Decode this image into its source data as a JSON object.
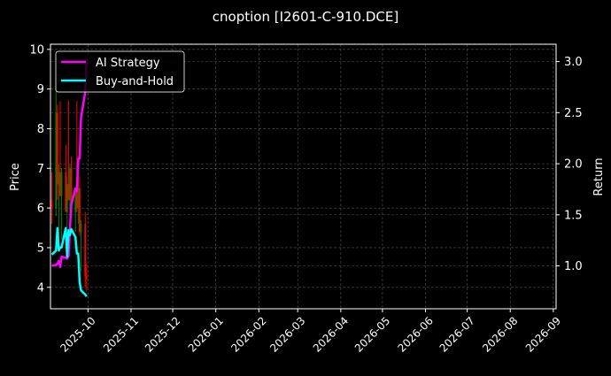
{
  "chart_data": {
    "type": "line",
    "title": "cnoption [I2601-C-910.DCE]",
    "xlabel": "",
    "ylabel": "Price",
    "y2label": "Return",
    "xlim": [
      "2025-09-04",
      "2026-09-03"
    ],
    "ylim": [
      3.46,
      10.13
    ],
    "y2lim": [
      0.58,
      3.17
    ],
    "x_ticks": [
      "2025-10",
      "2025-11",
      "2025-12",
      "2026-01",
      "2026-02",
      "2026-03",
      "2026-04",
      "2026-05",
      "2026-06",
      "2026-07",
      "2026-08",
      "2026-09"
    ],
    "y_ticks": [
      4,
      5,
      6,
      7,
      8,
      9,
      10
    ],
    "y2_ticks": [
      "1.0",
      "1.5",
      "2.0",
      "2.5",
      "3.0"
    ],
    "grid": true,
    "legend_placement": "top-left",
    "colors": {
      "up": "#008000",
      "down": "#ff0000",
      "strategy": "#ff00ff",
      "buyhold": "#00ffff",
      "background": "#000000",
      "grid": "#555555"
    },
    "dates": [
      "2025-09-05",
      "2025-09-08",
      "2025-09-09",
      "2025-09-10",
      "2025-09-11",
      "2025-09-12",
      "2025-09-15",
      "2025-09-16",
      "2025-09-17",
      "2025-09-18",
      "2025-09-19",
      "2025-09-22",
      "2025-09-23",
      "2025-09-24",
      "2025-09-25",
      "2025-09-26",
      "2025-09-29",
      "2025-09-30"
    ],
    "ohlc": [
      [
        6.2,
        6.9,
        5.6,
        6.0
      ],
      [
        6.0,
        9.2,
        5.8,
        8.4
      ],
      [
        8.4,
        8.6,
        6.2,
        6.6
      ],
      [
        6.6,
        7.1,
        5.0,
        6.9
      ],
      [
        6.9,
        8.7,
        6.3,
        6.3
      ],
      [
        6.3,
        7.0,
        5.2,
        6.9
      ],
      [
        6.9,
        7.6,
        5.9,
        5.9
      ],
      [
        5.9,
        6.8,
        5.5,
        6.6
      ],
      [
        6.6,
        8.7,
        6.2,
        6.2
      ],
      [
        6.2,
        7.1,
        5.7,
        7.0
      ],
      [
        7.0,
        7.3,
        5.8,
        5.9
      ],
      [
        5.9,
        6.5,
        5.4,
        6.4
      ],
      [
        6.4,
        8.7,
        5.9,
        6.0
      ],
      [
        6.0,
        6.9,
        5.6,
        6.5
      ],
      [
        6.5,
        6.8,
        5.3,
        5.4
      ],
      [
        5.4,
        5.7,
        4.4,
        5.6
      ],
      [
        5.6,
        5.9,
        4.0,
        4.3
      ],
      [
        4.3,
        4.6,
        3.9,
        4.2
      ]
    ],
    "series": [
      {
        "name": "AI Strategy",
        "axis": "right",
        "values": [
          1.0,
          1.01,
          1.02,
          1.05,
          0.99,
          1.09,
          1.08,
          1.07,
          1.1,
          1.36,
          1.6,
          1.76,
          1.73,
          2.05,
          2.05,
          2.45,
          2.7,
          3.02
        ]
      },
      {
        "name": "Buy-and-Hold",
        "axis": "right",
        "values": [
          1.11,
          1.15,
          1.37,
          1.15,
          1.18,
          1.18,
          1.37,
          1.09,
          1.35,
          1.3,
          1.36,
          1.28,
          1.12,
          1.12,
          0.84,
          0.76,
          0.72,
          0.7
        ]
      }
    ]
  }
}
